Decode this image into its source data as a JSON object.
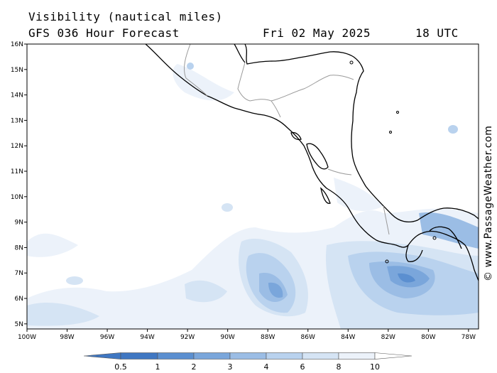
{
  "header": {
    "line1": "Visibility (nautical miles)",
    "model": "GFS 036 Hour Forecast",
    "date": "Fri 02 May 2025",
    "time": "18 UTC"
  },
  "credit": "© www.PassageWeather.com",
  "map": {
    "lon_labels": [
      "100W",
      "98W",
      "96W",
      "94W",
      "92W",
      "90W",
      "88W",
      "86W",
      "84W",
      "82W",
      "80W",
      "78W"
    ],
    "lat_labels": [
      "5N",
      "6N",
      "7N",
      "8N",
      "9N",
      "10N",
      "11N",
      "12N",
      "13N",
      "14N",
      "15N",
      "16N"
    ],
    "extent": {
      "lon_min": -100,
      "lon_max": -77.5,
      "lat_min": 4.8,
      "lat_max": 16.0
    }
  },
  "legend": {
    "ticks": [
      "0.5",
      "1",
      "2",
      "3",
      "4",
      "6",
      "8",
      "10"
    ],
    "colors": [
      "#3f77c2",
      "#5b8fd0",
      "#7aa6db",
      "#9bbde5",
      "#b9d2ee",
      "#d5e4f4",
      "#ecf2fa",
      "#ffffff"
    ]
  },
  "colors": {
    "coast": "#000000",
    "border": "#9a9a9a",
    "sea": "#ffffff"
  }
}
